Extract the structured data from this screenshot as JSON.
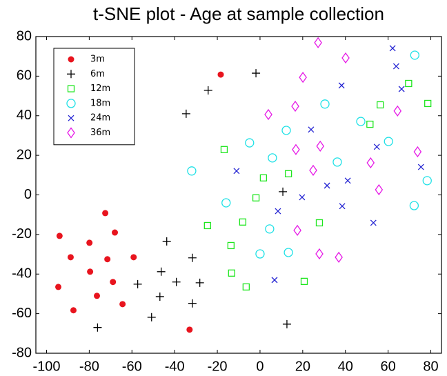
{
  "chart_data": {
    "type": "scatter",
    "title": "t-SNE plot - Age at sample  collection",
    "xlim": [
      -105,
      85
    ],
    "ylim": [
      -80,
      80
    ],
    "xticks": [
      -100,
      -80,
      -60,
      -40,
      -20,
      0,
      20,
      40,
      60,
      80
    ],
    "yticks": [
      -80,
      -60,
      -40,
      -20,
      0,
      20,
      40,
      60,
      80
    ],
    "legend": "upper left",
    "series": [
      {
        "name": "3m",
        "color": "#e8141e",
        "marker": "dot",
        "x": [
          -72.5,
          -93.9,
          -68.0,
          -79.9,
          -88.7,
          -71.5,
          -59.2,
          -79.6,
          -68.9,
          -94.5,
          -76.4,
          -64.4,
          -87.4,
          -33.0,
          -18.4
        ],
        "y": [
          -9.2,
          -20.7,
          -19.0,
          -24.2,
          -31.5,
          -32.5,
          -31.5,
          -38.8,
          -44.0,
          -46.5,
          -51.0,
          -55.2,
          -58.3,
          -68.1,
          60.8
        ]
      },
      {
        "name": "6m",
        "color": "#000000",
        "marker": "plus",
        "x": [
          -1.9,
          -24.3,
          -34.6,
          10.7,
          -43.7,
          -31.7,
          -46.3,
          -57.3,
          -39.2,
          -28.2,
          -46.9,
          -31.7,
          -50.8,
          -76.1,
          12.6
        ],
        "y": [
          61.5,
          52.8,
          41.0,
          1.6,
          -23.5,
          -31.8,
          -38.8,
          -45.1,
          -44.0,
          -44.4,
          -51.4,
          -54.8,
          -61.8,
          -67.0,
          -65.3
        ]
      },
      {
        "name": "12m",
        "color": "#1ee61e",
        "marker": "square",
        "x": [
          78.6,
          69.6,
          56.3,
          51.5,
          -16.8,
          13.3,
          1.6,
          -1.9,
          -8.1,
          -24.6,
          27.8,
          -13.6,
          -13.3,
          -6.5,
          20.7
        ],
        "y": [
          46.2,
          56.3,
          45.5,
          35.7,
          22.9,
          10.7,
          8.6,
          -1.5,
          -13.7,
          -15.5,
          -14.1,
          -25.6,
          -39.5,
          -46.5,
          -43.7
        ]
      },
      {
        "name": "18m",
        "color": "#1ee1e6",
        "marker": "circle",
        "x": [
          72.5,
          30.4,
          12.3,
          47.2,
          -4.9,
          5.8,
          60.2,
          -32.0,
          36.2,
          78.3,
          -15.9,
          4.5,
          13.3,
          0.0,
          72.2
        ],
        "y": [
          70.6,
          45.9,
          32.6,
          37.1,
          26.3,
          18.7,
          27.0,
          12.1,
          16.6,
          7.2,
          -4.0,
          -17.2,
          -29.1,
          -29.8,
          -5.4
        ]
      },
      {
        "name": "24m",
        "color": "#2323d2",
        "marker": "x",
        "x": [
          62.1,
          63.8,
          38.2,
          66.3,
          23.9,
          -11.0,
          54.7,
          75.4,
          41.1,
          31.4,
          19.7,
          8.4,
          38.5,
          53.1,
          6.8
        ],
        "y": [
          74.1,
          65.0,
          55.3,
          53.5,
          33.0,
          12.1,
          24.3,
          14.1,
          7.2,
          4.7,
          -1.2,
          -8.2,
          -5.7,
          -14.1,
          -43.0
        ]
      },
      {
        "name": "36m",
        "color": "#e619e6",
        "marker": "diamond",
        "x": [
          27.2,
          40.1,
          20.1,
          3.9,
          16.5,
          64.4,
          28.2,
          16.8,
          73.8,
          24.9,
          51.8,
          55.7,
          17.5,
          27.8,
          36.9
        ],
        "y": [
          76.9,
          69.2,
          59.4,
          40.6,
          44.8,
          42.4,
          24.6,
          22.9,
          21.8,
          12.4,
          16.2,
          2.6,
          -17.9,
          -29.8,
          -31.5
        ]
      }
    ]
  }
}
